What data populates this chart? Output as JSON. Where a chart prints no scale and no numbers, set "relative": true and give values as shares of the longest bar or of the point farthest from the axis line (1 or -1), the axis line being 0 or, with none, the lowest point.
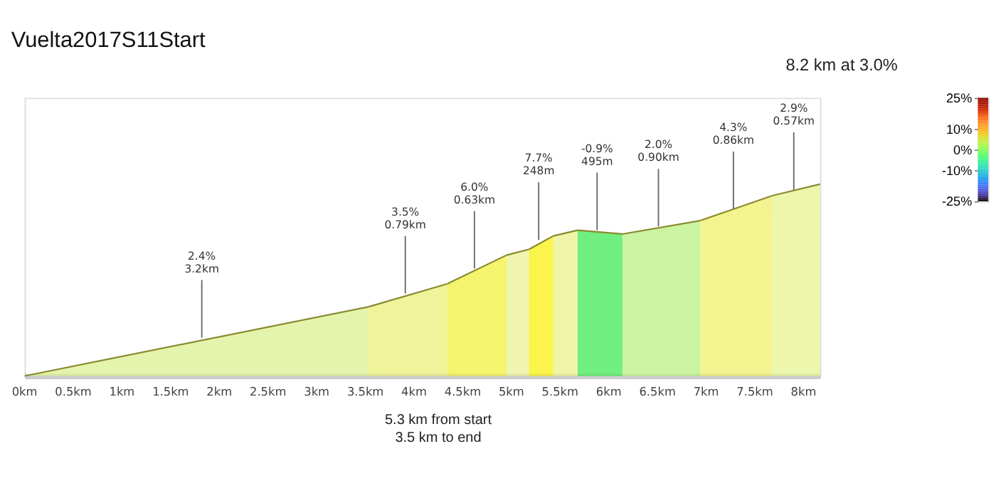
{
  "chart_data": {
    "type": "area",
    "title": "Vuelta2017S11Start",
    "subtitle": "8.2 km at 3.0%",
    "relative": true,
    "grid": false,
    "series": [
      {
        "color": "#d8f08a",
        "x": [
          0,
          3.53
        ],
        "values": [
          0,
          0.36
        ]
      },
      {
        "color": "#e8f070",
        "x": [
          3.53,
          4.34
        ],
        "values": [
          0.36,
          0.48
        ]
      },
      {
        "color": "#f0f030",
        "x": [
          4.34,
          4.95
        ],
        "values": [
          0.48,
          0.63
        ]
      },
      {
        "color": "#e8f090",
        "x": [
          4.95,
          5.18
        ],
        "values": [
          0.63,
          0.66
        ]
      },
      {
        "color": "#f8f000",
        "x": [
          5.18,
          5.43
        ],
        "values": [
          0.66,
          0.73
        ]
      },
      {
        "color": "#e8f080",
        "x": [
          5.43,
          5.68
        ],
        "values": [
          0.73,
          0.76
        ]
      },
      {
        "color": "#33e84a",
        "x": [
          5.68,
          6.14
        ],
        "values": [
          0.76,
          0.74
        ]
      },
      {
        "color": "#b4f07a",
        "x": [
          6.14,
          6.94
        ],
        "values": [
          0.74,
          0.81
        ]
      },
      {
        "color": "#eef060",
        "x": [
          6.94,
          7.68
        ],
        "values": [
          0.81,
          0.94
        ]
      },
      {
        "color": "#e4f48a",
        "x": [
          7.68,
          8.17
        ],
        "values": [
          0.94,
          1
        ]
      }
    ],
    "xlim": [
      0,
      8.17
    ],
    "xticks": [
      {
        "value": 0,
        "label": "0km"
      },
      {
        "value": 0.5,
        "label": "0.5km"
      },
      {
        "value": 1,
        "label": "1km"
      },
      {
        "value": 1.5,
        "label": "1.5km"
      },
      {
        "value": 2,
        "label": "2km"
      },
      {
        "value": 2.5,
        "label": "2.5km"
      },
      {
        "value": 3,
        "label": "3km"
      },
      {
        "value": 3.5,
        "label": "3.5km"
      },
      {
        "value": 4,
        "label": "4km"
      },
      {
        "value": 4.5,
        "label": "4.5km"
      },
      {
        "value": 5,
        "label": "5km"
      },
      {
        "value": 5.5,
        "label": "5.5km"
      },
      {
        "value": 6,
        "label": "6km"
      },
      {
        "value": 6.5,
        "label": "6.5km"
      },
      {
        "value": 7,
        "label": "7km"
      },
      {
        "value": 7.5,
        "label": "7.5km"
      },
      {
        "value": 8,
        "label": "8km"
      }
    ],
    "annotations": [
      {
        "text": "2.4%\n3.2km",
        "x": 1.82,
        "y": 0.2
      },
      {
        "text": "3.5%\n0.79km",
        "x": 3.91,
        "y": 0.43
      },
      {
        "text": "6.0%\n0.63km",
        "x": 4.62,
        "y": 0.56
      },
      {
        "text": "7.7%\n248m",
        "x": 5.28,
        "y": 0.71
      },
      {
        "text": "-0.9%\n495m",
        "x": 5.88,
        "y": 0.76
      },
      {
        "text": "2.0%\n0.90km",
        "x": 6.51,
        "y": 0.78
      },
      {
        "text": "4.3%\n0.86km",
        "x": 7.28,
        "y": 0.87
      },
      {
        "text": "2.9%\n0.57km",
        "x": 7.9,
        "y": 0.97
      },
      "5.3 km from start\n3.5 km to end"
    ],
    "clim": [
      -25,
      25
    ],
    "cticks": [
      {
        "value": 25,
        "label": "25%"
      },
      {
        "value": 10,
        "label": "10%"
      },
      {
        "value": 0,
        "label": "0%"
      },
      {
        "value": -10,
        "label": "-10%"
      },
      {
        "value": -25,
        "label": "-25%"
      }
    ]
  }
}
